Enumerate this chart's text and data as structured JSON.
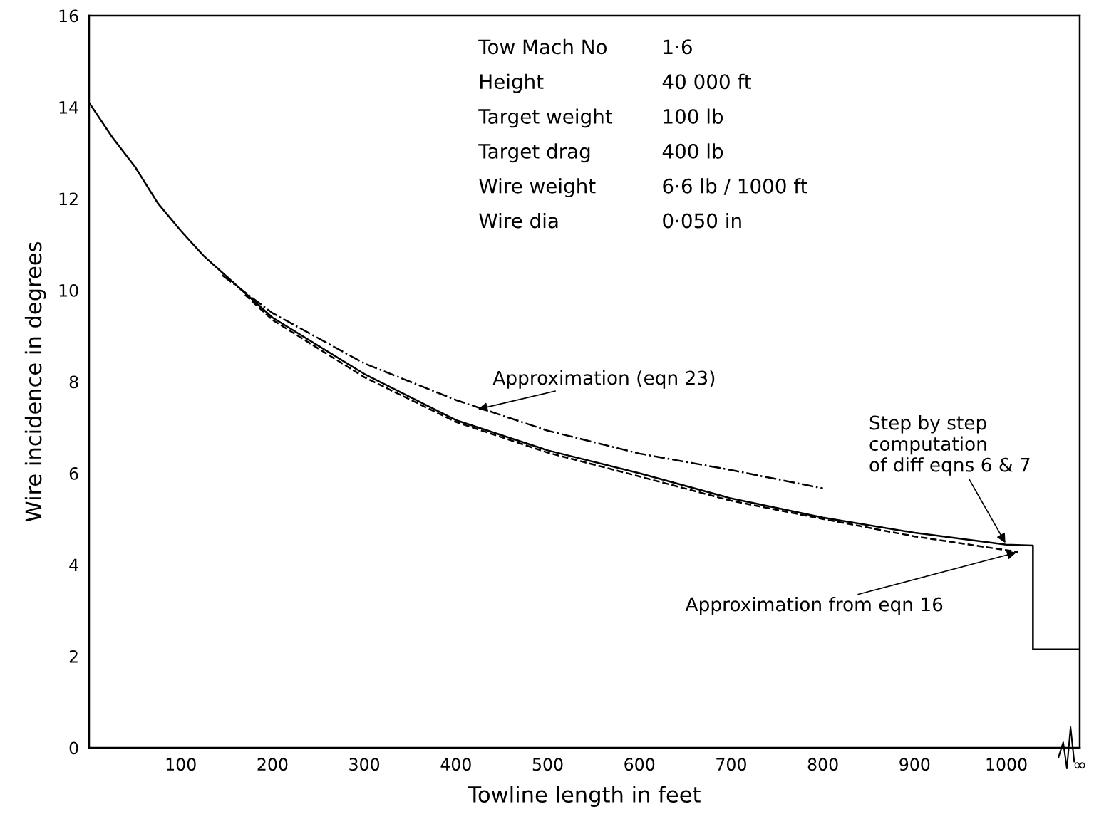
{
  "chart_data": {
    "type": "line",
    "xlabel": "Towline length in feet",
    "ylabel": "Wire incidence in degrees",
    "xlim": [
      0,
      1080
    ],
    "ylim": [
      0,
      16
    ],
    "xticks": [
      100,
      200,
      300,
      400,
      500,
      600,
      700,
      800,
      900,
      1000,
      {
        "value": 1080,
        "label": "∞"
      }
    ],
    "yticks": [
      0,
      2,
      4,
      6,
      8,
      10,
      12,
      14,
      16
    ],
    "grid": false,
    "marker": "none",
    "series": [
      {
        "color": "#000000",
        "line_style": "solid",
        "x": [
          0,
          25,
          50,
          75,
          100,
          125,
          150,
          200,
          300,
          400,
          500,
          600,
          700,
          800,
          900,
          1000,
          1029,
          1029,
          1080
        ],
        "values": [
          14.1,
          13.35,
          12.7,
          11.9,
          11.3,
          10.75,
          10.3,
          9.4,
          8.17,
          7.16,
          6.5,
          6.0,
          5.45,
          5.03,
          4.7,
          4.44,
          4.42,
          2.15,
          2.15
        ]
      },
      {
        "color": "#000000",
        "line_style": "dashdot",
        "x": [
          145,
          200,
          300,
          400,
          500,
          600,
          700,
          800
        ],
        "values": [
          10.33,
          9.5,
          8.4,
          7.6,
          6.93,
          6.43,
          6.07,
          5.67
        ]
      },
      {
        "color": "#000000",
        "line_style": "dashed",
        "x": [
          170,
          200,
          300,
          400,
          500,
          600,
          700,
          800,
          900,
          1013
        ],
        "values": [
          9.9,
          9.35,
          8.1,
          7.12,
          6.45,
          5.93,
          5.4,
          5.0,
          4.62,
          4.28
        ]
      }
    ],
    "annotations": [
      "Tow Mach No\t1·6",
      "Height\t40 000 ft",
      "Target weight\t100 lb",
      "Target drag\t400 lb",
      "Wire weight\t6·6 lb / 1000 ft",
      "Wire dia\t0·050 in",
      {
        "text": "Approximation (eqn 23)",
        "x": 422,
        "y": 7.39
      },
      {
        "text": "Step by step\ncomputation\nof diff eqns 6 & 7",
        "x": 1000,
        "y": 4.44
      },
      {
        "text": "Approximation from eqn 16",
        "x": 1013,
        "y": 4.28
      }
    ]
  }
}
